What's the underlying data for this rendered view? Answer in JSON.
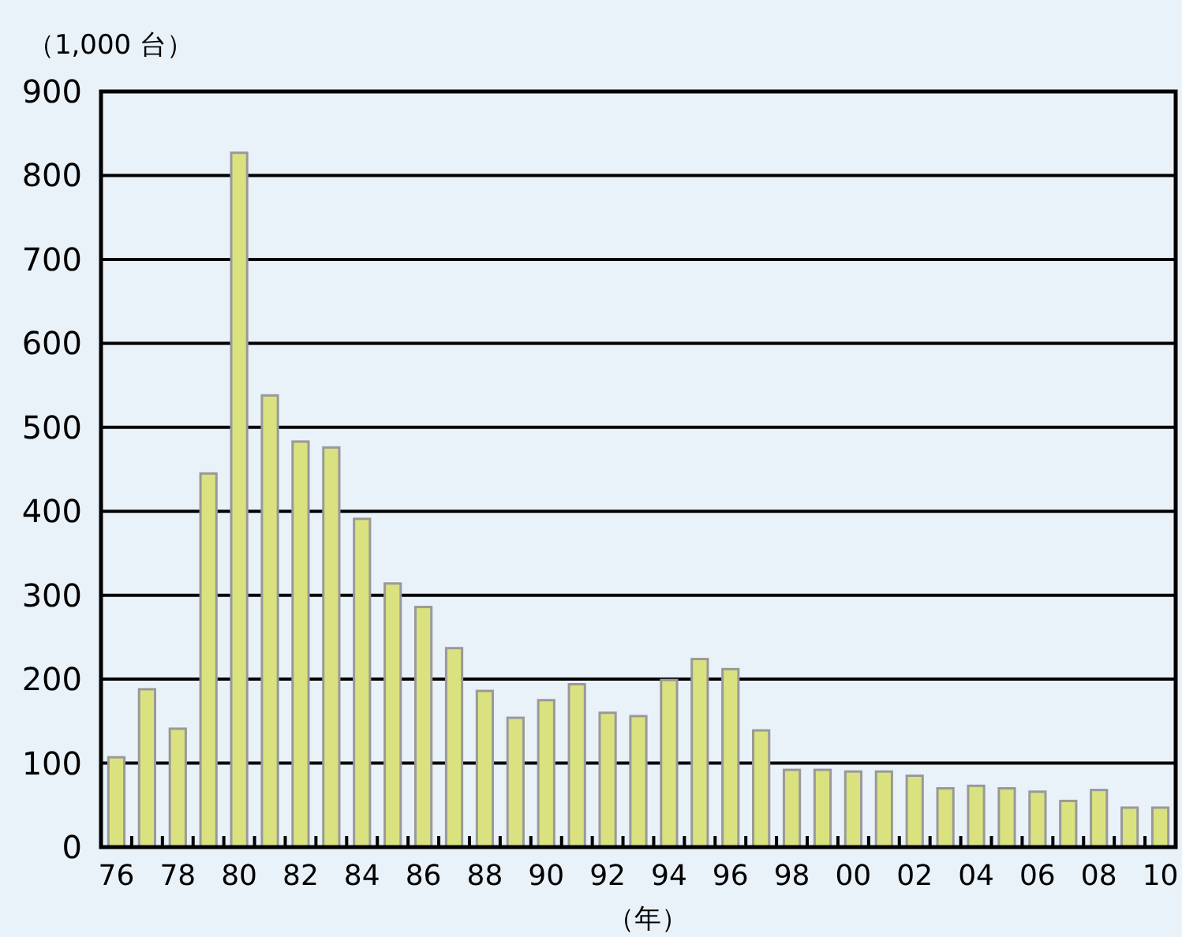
{
  "chart_data": {
    "type": "bar",
    "ylabel": "（1,000 台）",
    "xlabel": "（年）",
    "categories": [
      "76",
      null,
      "78",
      null,
      "80",
      null,
      "82",
      null,
      "84",
      null,
      "86",
      null,
      "88",
      null,
      "90",
      null,
      "92",
      null,
      "94",
      null,
      "96",
      null,
      "98",
      null,
      "00",
      null,
      "02",
      null,
      "04",
      null,
      "06",
      null,
      "08",
      null,
      "10"
    ],
    "values": [
      107,
      188,
      141,
      445,
      827,
      538,
      483,
      476,
      391,
      314,
      286,
      237,
      186,
      154,
      175,
      194,
      160,
      156,
      199,
      224,
      212,
      139,
      92,
      92,
      90,
      90,
      85,
      70,
      73,
      70,
      66,
      55,
      68,
      47,
      47
    ],
    "color": "#d9e27f",
    "ylim": [
      0,
      900
    ],
    "yticks": [
      0,
      100,
      200,
      300,
      400,
      500,
      600,
      700,
      800,
      900
    ],
    "grid": "y"
  }
}
